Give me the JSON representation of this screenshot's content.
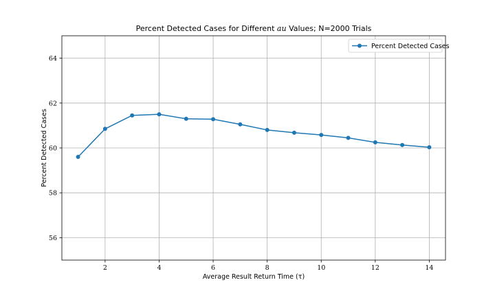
{
  "chart_data": {
    "type": "line",
    "title": "Percent Detected Cases for Different τ Values; N=2000 Trials",
    "title_prefix": "Percent Detected Cases for Different ",
    "title_symbol": "au",
    "title_suffix": " Values; N=2000 Trials",
    "xlabel": "Average Result Return Time (τ)",
    "ylabel": "Percent Detected Cases",
    "xlim": [
      0.4,
      14.6
    ],
    "ylim": [
      55.0,
      65.0
    ],
    "xticks": [
      2,
      4,
      6,
      8,
      10,
      12,
      14
    ],
    "yticks": [
      56,
      58,
      60,
      62,
      64
    ],
    "grid": true,
    "legend_position": "top-right",
    "line_color": "#1f77b4",
    "series": [
      {
        "name": "Percent Detected Cases",
        "x": [
          1,
          2,
          3,
          4,
          5,
          6,
          7,
          8,
          9,
          10,
          11,
          12,
          13,
          14
        ],
        "values": [
          59.6,
          60.85,
          61.45,
          61.5,
          61.3,
          61.28,
          61.05,
          60.8,
          60.68,
          60.58,
          60.45,
          60.25,
          60.13,
          60.03
        ]
      }
    ]
  }
}
